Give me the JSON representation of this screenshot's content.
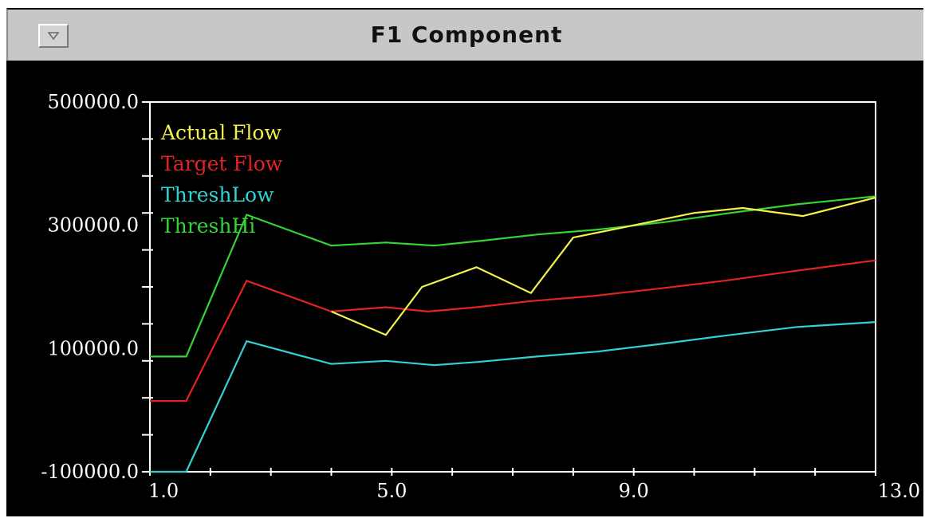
{
  "window": {
    "title": "F1 Component",
    "menu_icon": "triangle-down-icon"
  },
  "colors": {
    "background": "#000000",
    "axis": "#ffffff",
    "actual_flow": "#f2f24a",
    "target_flow": "#e52222",
    "thresh_low": "#33d2d2",
    "thresh_hi": "#33d633"
  },
  "chart_data": {
    "type": "line",
    "title": "",
    "xlabel": "",
    "ylabel": "",
    "xlim": [
      1.0,
      13.0
    ],
    "ylim": [
      -100000.0,
      500000.0
    ],
    "x_tick_labels": [
      "1.0",
      "5.0",
      "9.0",
      "13.0"
    ],
    "y_tick_labels": [
      "500000.0",
      "300000.0",
      "100000.0",
      "-100000.0"
    ],
    "grid": false,
    "legend_position": "top-left",
    "series": [
      {
        "name": "Actual Flow",
        "color": "#f2f24a",
        "points": [
          [
            4.0,
            160000
          ],
          [
            4.9,
            122000
          ],
          [
            5.5,
            200000
          ],
          [
            6.4,
            232000
          ],
          [
            7.3,
            190000
          ],
          [
            8.0,
            280000
          ],
          [
            9.0,
            300000
          ],
          [
            10.0,
            320000
          ],
          [
            10.8,
            328000
          ],
          [
            11.8,
            315000
          ],
          [
            13.0,
            345000
          ]
        ]
      },
      {
        "name": "Target Flow",
        "color": "#e52222",
        "points": [
          [
            1.0,
            15000
          ],
          [
            1.6,
            15000
          ],
          [
            2.6,
            210000
          ],
          [
            4.0,
            160000
          ],
          [
            4.9,
            167000
          ],
          [
            5.6,
            160000
          ],
          [
            6.4,
            167000
          ],
          [
            7.3,
            177000
          ],
          [
            8.3,
            185000
          ],
          [
            9.4,
            197000
          ],
          [
            10.5,
            210000
          ],
          [
            11.6,
            225000
          ],
          [
            13.0,
            243000
          ]
        ]
      },
      {
        "name": "ThreshLow",
        "color": "#33d2d2",
        "points": [
          [
            1.0,
            -100000
          ],
          [
            1.6,
            -100000
          ],
          [
            2.6,
            112000
          ],
          [
            4.0,
            75000
          ],
          [
            4.9,
            80000
          ],
          [
            5.7,
            73000
          ],
          [
            6.4,
            78000
          ],
          [
            7.4,
            87000
          ],
          [
            8.4,
            95000
          ],
          [
            9.5,
            108000
          ],
          [
            10.6,
            122000
          ],
          [
            11.7,
            135000
          ],
          [
            13.0,
            143000
          ]
        ]
      },
      {
        "name": "ThreshHi",
        "color": "#33d633",
        "points": [
          [
            1.0,
            87000
          ],
          [
            1.6,
            87000
          ],
          [
            2.6,
            317000
          ],
          [
            4.0,
            267000
          ],
          [
            4.9,
            272000
          ],
          [
            5.7,
            267000
          ],
          [
            6.5,
            275000
          ],
          [
            7.4,
            285000
          ],
          [
            8.4,
            293000
          ],
          [
            9.5,
            305000
          ],
          [
            10.6,
            320000
          ],
          [
            11.7,
            334000
          ],
          [
            13.0,
            347000
          ]
        ]
      }
    ]
  }
}
